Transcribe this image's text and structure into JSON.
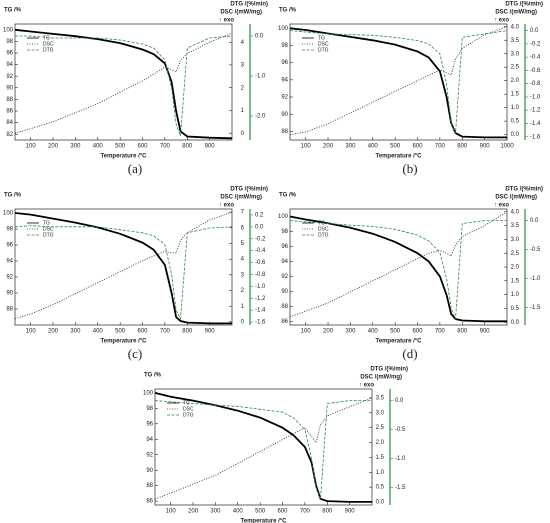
{
  "chart_data": [
    {
      "type": "line",
      "label": "(a)",
      "y_label": "TG /%",
      "y2_label": "DSC /(mW/mg)",
      "y3_label": "DTG /(%/min)",
      "annotation": "↑ exo",
      "x_label": "Temperature /°C",
      "x": [
        30,
        100,
        200,
        300,
        400,
        500,
        600,
        650,
        700,
        730,
        750,
        770,
        800,
        900,
        1000
      ],
      "xlim": [
        30,
        1000
      ],
      "xticks": [
        100,
        200,
        300,
        400,
        500,
        600,
        700,
        800,
        900
      ],
      "ylim": [
        81,
        101
      ],
      "yticks": [
        82,
        84,
        86,
        88,
        90,
        92,
        94,
        96,
        98,
        100
      ],
      "y2lim": [
        -0.3,
        4.8
      ],
      "y2ticks": [
        0,
        1,
        2,
        3,
        4
      ],
      "y3lim": [
        -2.6,
        0.3
      ],
      "y3ticks": [
        {
          "value": 0,
          "label": "0.0"
        },
        {
          "value": -1,
          "label": "-1.0"
        },
        {
          "value": -2,
          "label": "-2.0"
        }
      ],
      "series": [
        {
          "name": "TG",
          "color": "#000000",
          "values": [
            100,
            99.7,
            99.3,
            98.9,
            98.4,
            97.7,
            96.6,
            95.8,
            94.2,
            91,
            86,
            82.5,
            81.6,
            81.4,
            81.3
          ]
        },
        {
          "name": "DSC",
          "color": "#333333",
          "axis": "y2",
          "values": [
            0,
            0.2,
            0.5,
            0.9,
            1.3,
            1.8,
            2.3,
            2.6,
            2.9,
            2.8,
            2.7,
            3.2,
            3.5,
            4.0,
            4.4
          ]
        },
        {
          "name": "DTG",
          "color": "#2e8b3e",
          "axis": "y3",
          "values": [
            0,
            0,
            -0.05,
            -0.05,
            -0.05,
            -0.1,
            -0.2,
            -0.3,
            -0.6,
            -1.3,
            -2.2,
            -2.5,
            -0.3,
            -0.05,
            0
          ]
        }
      ]
    },
    {
      "type": "line",
      "label": "(b)",
      "y_label": "TG /%",
      "y2_label": "DSC /(mW/mg)",
      "y3_label": "DTG /(%/min)",
      "annotation": "↑ exo",
      "x_label": "Temperature /°C",
      "x": [
        30,
        100,
        200,
        300,
        400,
        500,
        600,
        650,
        700,
        730,
        750,
        770,
        800,
        900,
        1000
      ],
      "xlim": [
        30,
        1000
      ],
      "xticks": [
        100,
        200,
        300,
        400,
        500,
        600,
        700,
        800,
        900,
        1000
      ],
      "ylim": [
        87,
        100.5
      ],
      "yticks": [
        88,
        90,
        92,
        94,
        96,
        98,
        100
      ],
      "y2lim": [
        -0.2,
        4.1
      ],
      "y2ticks": [
        {
          "value": 0,
          "label": "0.0"
        },
        0.5,
        {
          "value": 1,
          "label": "1.0"
        },
        1.5,
        {
          "value": 2,
          "label": "2.0"
        },
        2.5,
        {
          "value": 3,
          "label": "3.0"
        },
        3.5,
        {
          "value": 4,
          "label": "4.0"
        }
      ],
      "y3lim": [
        -1.65,
        0.1
      ],
      "y3ticks": [
        {
          "value": 0,
          "label": "0.0"
        },
        -0.2,
        -0.4,
        -0.6,
        -0.8,
        {
          "value": -1,
          "label": "-1.0"
        },
        -1.2,
        -1.4,
        -1.6
      ],
      "series": [
        {
          "name": "TG",
          "color": "#000000",
          "values": [
            100,
            99.8,
            99.4,
            99,
            98.6,
            98.1,
            97.3,
            96.6,
            95,
            92,
            89,
            87.8,
            87.4,
            87.3,
            87.3
          ]
        },
        {
          "name": "DSC",
          "color": "#333333",
          "axis": "y2",
          "values": [
            0,
            0.1,
            0.4,
            0.8,
            1.2,
            1.6,
            2.0,
            2.2,
            2.4,
            2.3,
            2.2,
            2.8,
            3.2,
            3.7,
            4.0
          ]
        },
        {
          "name": "DTG",
          "color": "#2e8b3e",
          "axis": "y3",
          "values": [
            0,
            -0.02,
            -0.05,
            -0.06,
            -0.07,
            -0.1,
            -0.15,
            -0.2,
            -0.35,
            -0.8,
            -1.4,
            -1.55,
            -0.1,
            -0.05,
            0
          ]
        }
      ]
    },
    {
      "type": "line",
      "label": "(c)",
      "y_label": "TG /%",
      "y2_label": "DSC /(mW/mg)",
      "y3_label": "DTG /(%/min)",
      "annotation": "↑ exo",
      "x_label": "Temperature /°C",
      "x": [
        30,
        100,
        200,
        300,
        400,
        500,
        600,
        650,
        700,
        730,
        750,
        770,
        800,
        900,
        1000
      ],
      "xlim": [
        30,
        1000
      ],
      "xticks": [
        100,
        200,
        300,
        400,
        500,
        600,
        700,
        800,
        900
      ],
      "ylim": [
        86,
        100.5
      ],
      "yticks": [
        88,
        90,
        92,
        94,
        96,
        98,
        100
      ],
      "y2lim": [
        -0.2,
        7.2
      ],
      "y2ticks": [
        0,
        1,
        2,
        3,
        4,
        5,
        6,
        7
      ],
      "y3lim": [
        -1.65,
        0.3
      ],
      "y3ticks": [
        0.2,
        {
          "value": 0,
          "label": "0.0"
        },
        -0.2,
        -0.4,
        -0.6,
        -0.8,
        {
          "value": -1,
          "label": "-1.0"
        },
        -1.2,
        -1.4,
        -1.6
      ],
      "series": [
        {
          "name": "TG",
          "color": "#000000",
          "values": [
            100,
            99.8,
            99.3,
            98.8,
            98.2,
            97.4,
            96.3,
            95.4,
            93.5,
            90,
            87,
            86.5,
            86.3,
            86.2,
            86.2
          ]
        },
        {
          "name": "DSC",
          "color": "#333333",
          "axis": "y2",
          "values": [
            0.2,
            0.5,
            1.1,
            1.8,
            2.5,
            3.2,
            3.9,
            4.2,
            4.5,
            4.4,
            4.4,
            5.2,
            5.7,
            6.5,
            7.0
          ]
        },
        {
          "name": "DTG",
          "color": "#2e8b3e",
          "axis": "y3",
          "values": [
            0,
            0.02,
            0,
            0,
            0,
            -0.05,
            -0.1,
            -0.15,
            -0.3,
            -0.8,
            -1.4,
            -1.55,
            -0.1,
            -0.02,
            0
          ]
        }
      ]
    },
    {
      "type": "line",
      "label": "(d)",
      "y_label": "TG /%",
      "y2_label": "DSC /(mW/mg)",
      "y3_label": "DTG /(%/min)",
      "annotation": "↑ exo",
      "x_label": "Temperature /°C",
      "x": [
        30,
        100,
        200,
        300,
        400,
        500,
        600,
        650,
        700,
        730,
        750,
        770,
        800,
        900,
        1000
      ],
      "xlim": [
        30,
        1000
      ],
      "xticks": [
        100,
        200,
        300,
        400,
        500,
        600,
        700,
        800,
        900
      ],
      "ylim": [
        85.5,
        101
      ],
      "yticks": [
        86,
        88,
        90,
        92,
        94,
        96,
        98,
        100
      ],
      "y2lim": [
        -0.1,
        4.1
      ],
      "y2ticks": [
        {
          "value": 0,
          "label": "0.0"
        },
        0.5,
        {
          "value": 1,
          "label": "1.0"
        },
        1.5,
        {
          "value": 2,
          "label": "2.0"
        },
        2.5,
        {
          "value": 3,
          "label": "3.0"
        },
        3.5,
        {
          "value": 4,
          "label": "4.0"
        }
      ],
      "y3lim": [
        -1.8,
        0.2
      ],
      "y3ticks": [
        {
          "value": 0,
          "label": "0.0"
        },
        -0.5,
        {
          "value": -1,
          "label": "-1.0"
        },
        -1.5
      ],
      "series": [
        {
          "name": "TG",
          "color": "#000000",
          "values": [
            100,
            99.6,
            99.1,
            98.5,
            97.7,
            96.6,
            95.1,
            94,
            92,
            89.5,
            87,
            86.3,
            86.1,
            86,
            86
          ]
        },
        {
          "name": "DSC",
          "color": "#333333",
          "axis": "y2",
          "values": [
            0.2,
            0.4,
            0.7,
            1.1,
            1.5,
            1.9,
            2.3,
            2.5,
            2.6,
            2.5,
            2.4,
            2.8,
            3.1,
            3.5,
            4.0
          ]
        },
        {
          "name": "DTG",
          "color": "#2e8b3e",
          "axis": "y3",
          "values": [
            0,
            -0.02,
            -0.05,
            -0.08,
            -0.1,
            -0.15,
            -0.25,
            -0.35,
            -0.55,
            -1.0,
            -1.5,
            -1.7,
            -0.05,
            0,
            0
          ]
        }
      ]
    },
    {
      "type": "line",
      "label": "(e)",
      "y_label": "TG /%",
      "y2_label": "DSC /(mW/mg)",
      "y3_label": "DTG /(%/min)",
      "annotation": "↑ exo",
      "x_label": "Temperature /°C",
      "x": [
        30,
        100,
        200,
        300,
        400,
        500,
        600,
        650,
        700,
        730,
        750,
        770,
        800,
        900,
        1000
      ],
      "xlim": [
        30,
        1000
      ],
      "xticks": [
        100,
        200,
        300,
        400,
        500,
        600,
        700,
        800,
        900
      ],
      "ylim": [
        85.5,
        100.5
      ],
      "yticks": [
        86,
        88,
        90,
        92,
        94,
        96,
        98,
        100
      ],
      "y2lim": [
        -0.1,
        3.8
      ],
      "y2ticks": [
        {
          "value": 0,
          "label": "0.0"
        },
        0.5,
        {
          "value": 1,
          "label": "1.0"
        },
        1.5,
        {
          "value": 2,
          "label": "2.0"
        },
        2.5,
        {
          "value": 3,
          "label": "3.0"
        },
        3.5
      ],
      "y3lim": [
        -1.8,
        0.2
      ],
      "y3ticks": [
        {
          "value": 0,
          "label": "0.0"
        },
        -0.5,
        {
          "value": -1,
          "label": "-1.0"
        },
        -1.5
      ],
      "series": [
        {
          "name": "TG",
          "color": "#000000",
          "values": [
            100,
            99.5,
            99,
            98.4,
            97.7,
            96.8,
            95.5,
            94.5,
            93,
            91,
            88,
            86.3,
            86,
            85.9,
            85.9
          ]
        },
        {
          "name": "DSC",
          "color": "#333333",
          "axis": "y2",
          "values": [
            0.1,
            0.3,
            0.6,
            0.9,
            1.3,
            1.7,
            2.1,
            2.3,
            2.5,
            2.2,
            2.0,
            2.6,
            2.9,
            3.2,
            3.5
          ]
        },
        {
          "name": "DTG",
          "color": "#2e8b3e",
          "axis": "y3",
          "values": [
            0,
            -0.02,
            -0.05,
            -0.08,
            -0.1,
            -0.15,
            -0.2,
            -0.3,
            -0.5,
            -1.0,
            -1.5,
            -1.7,
            -0.05,
            0,
            0
          ]
        }
      ]
    }
  ]
}
